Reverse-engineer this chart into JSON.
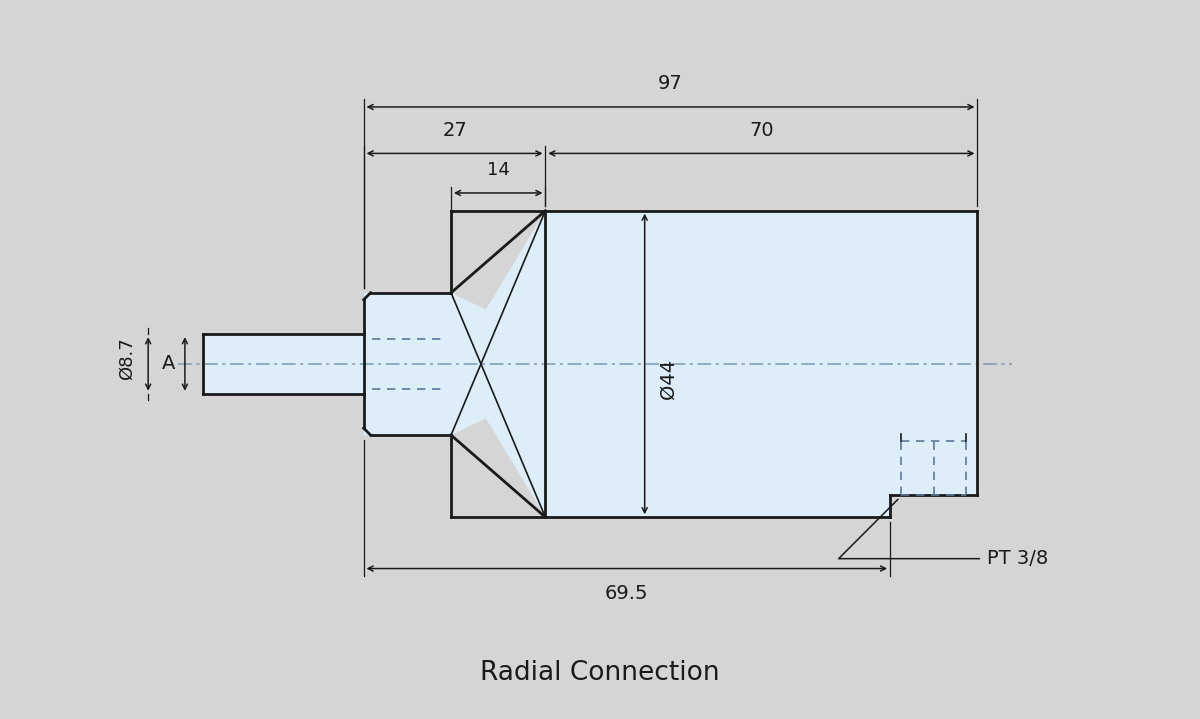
{
  "bg_color": "#d5d5d5",
  "drawing_bg": "#ddeef8",
  "line_color": "#1a1a1a",
  "dim_color": "#1a1a1a",
  "dash_color": "#5a7a9a",
  "centerline_color": "#7a9ab0",
  "title": "Radial Connection",
  "title_fontsize": 19,
  "dim_fontsize": 14,
  "label_fontsize": 13,
  "dims": {
    "label_phi44": "Ø44",
    "label_phi87": "Ø8.7",
    "label_A": "A",
    "label_97": "97",
    "label_27": "27",
    "label_70": "70",
    "label_14": "14",
    "label_695": "69.5",
    "label_PT": "PT 3/8"
  },
  "figsize": [
    12.0,
    7.19
  ],
  "dpi": 100
}
